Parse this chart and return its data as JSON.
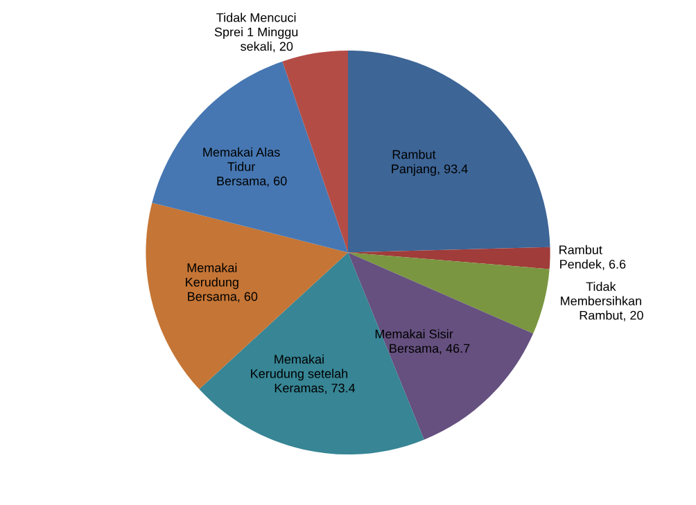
{
  "chart_data": {
    "type": "pie",
    "legend": false,
    "value_labels": [
      ", 93.4",
      ", 6.6",
      ", 20",
      ", 46.7",
      ", 73.4",
      ", 60",
      ", 60",
      ", 20"
    ],
    "categories": [
      "Rambut\nPanjang",
      "Rambut\nPendek",
      "Tidak\nMembersihkan\nRambut",
      "Memakai Sisir\nBersama",
      "Memakai\nKerudung setelah\nKeramas",
      "Memakai\nKerudung\nBersama",
      "Memakai Alas\nTidur\nBersama",
      "Tidak Mencuci\nSprei 1 Minggu\nsekali"
    ],
    "values": [
      93.4,
      6.6,
      20,
      46.7,
      73.4,
      60,
      60,
      20
    ],
    "colors": [
      "#3d6596",
      "#a03c3a",
      "#7a9640",
      "#65507f",
      "#378595",
      "#c57535",
      "#4677b2",
      "#b44c46"
    ]
  }
}
